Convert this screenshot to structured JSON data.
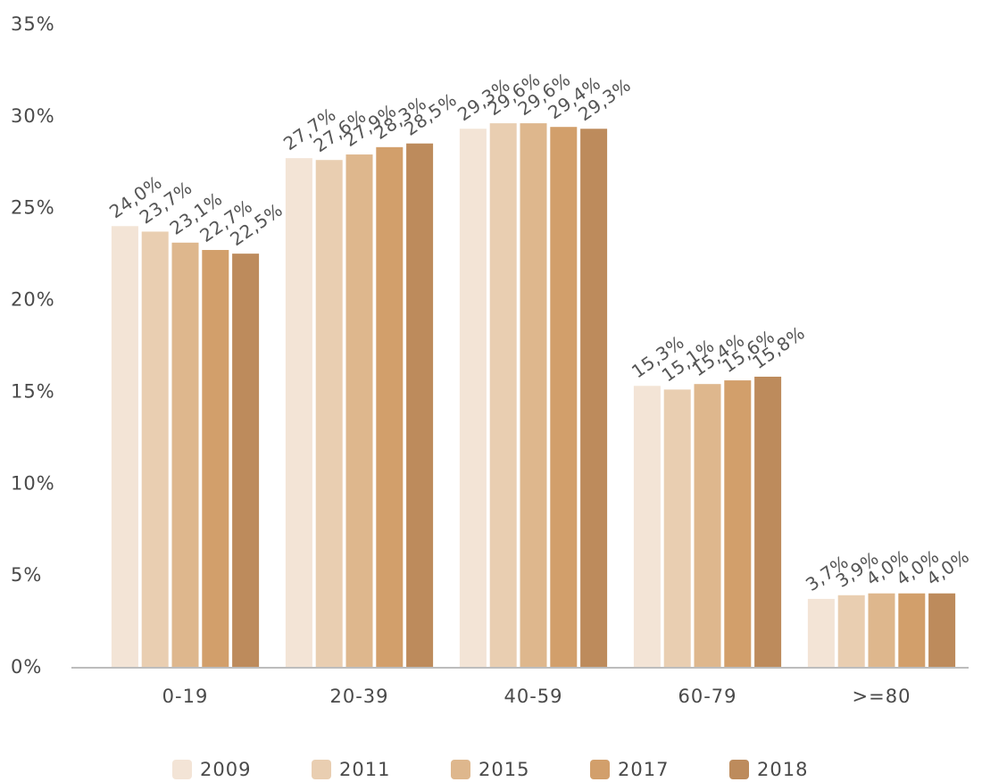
{
  "chart_data": {
    "type": "bar",
    "title": "",
    "xlabel": "",
    "ylabel": "",
    "categories": [
      "0-19",
      "20-39",
      "40-59",
      "60-79",
      ">=80"
    ],
    "ylim": [
      0,
      35
    ],
    "yticks": [
      "0%",
      "5%",
      "10%",
      "15%",
      "20%",
      "25%",
      "30%",
      "35%"
    ],
    "grid": false,
    "legend_position": "bottom",
    "series": [
      {
        "name": "2009",
        "color": "#f3e4d6",
        "values": [
          24.0,
          27.7,
          29.3,
          15.3,
          3.7
        ],
        "labels": [
          "24,0%",
          "27,7%",
          "29,3%",
          "15,3%",
          "3,7%"
        ]
      },
      {
        "name": "2011",
        "color": "#e9ceb1",
        "values": [
          23.7,
          27.6,
          29.6,
          15.1,
          3.9
        ],
        "labels": [
          "23,7%",
          "27,6%",
          "29,6%",
          "15,1%",
          "3,9%"
        ]
      },
      {
        "name": "2015",
        "color": "#deb78d",
        "values": [
          23.1,
          27.9,
          29.6,
          15.4,
          4.0
        ],
        "labels": [
          "23,1%",
          "27,9%",
          "29,6%",
          "15,4%",
          "4,0%"
        ]
      },
      {
        "name": "2017",
        "color": "#d29f6b",
        "values": [
          22.7,
          28.3,
          29.4,
          15.6,
          4.0
        ],
        "labels": [
          "22,7%",
          "28,3%",
          "29,4%",
          "15,6%",
          "4,0%"
        ]
      },
      {
        "name": "2018",
        "color": "#bd8b5c",
        "values": [
          22.5,
          28.5,
          29.3,
          15.8,
          4.0
        ],
        "labels": [
          "22,5%",
          "28,5%",
          "29,3%",
          "15,8%",
          "4,0%"
        ]
      }
    ]
  }
}
